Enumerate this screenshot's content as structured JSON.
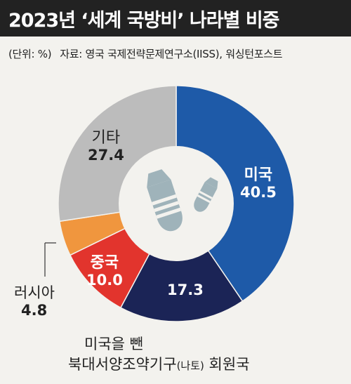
{
  "title": "2023년 ‘세계 국방비’ 나라별 비중",
  "unit_note": "(단위: %)",
  "source_note": "자료: 영국 국제전략문제연구소(IISS), 워싱턴포스트",
  "colors": {
    "title_bg": "#222222",
    "background": "#f3f2ee",
    "usa": "#1e5aa8",
    "nato": "#1b2456",
    "china": "#e2342d",
    "russia": "#f0963e",
    "other": "#bcbcbc",
    "icon": "#9fb3ba"
  },
  "icon_name": "bomb-icon",
  "chart_data": {
    "type": "pie",
    "variant": "donut",
    "unit": "%",
    "title": "2023년 ‘세계 국방비’ 나라별 비중",
    "slices": [
      {
        "label": "미국",
        "value": 40.5,
        "value_text": "40.5",
        "color": "#1e5aa8"
      },
      {
        "label": "미국을 뺀 북대서양조약기구(나토) 회원국",
        "line1": "미국을 뺀",
        "line2_main": "북대서양조약기구",
        "line2_paren": "(나토)",
        "line2_tail": " 회원국",
        "value": 17.3,
        "value_text": "17.3",
        "color": "#1b2456"
      },
      {
        "label": "중국",
        "value": 10.0,
        "value_text": "10.0",
        "color": "#e2342d"
      },
      {
        "label": "러시아",
        "value": 4.8,
        "value_text": "4.8",
        "color": "#f0963e"
      },
      {
        "label": "기타",
        "value": 27.4,
        "value_text": "27.4",
        "color": "#bcbcbc"
      }
    ]
  }
}
